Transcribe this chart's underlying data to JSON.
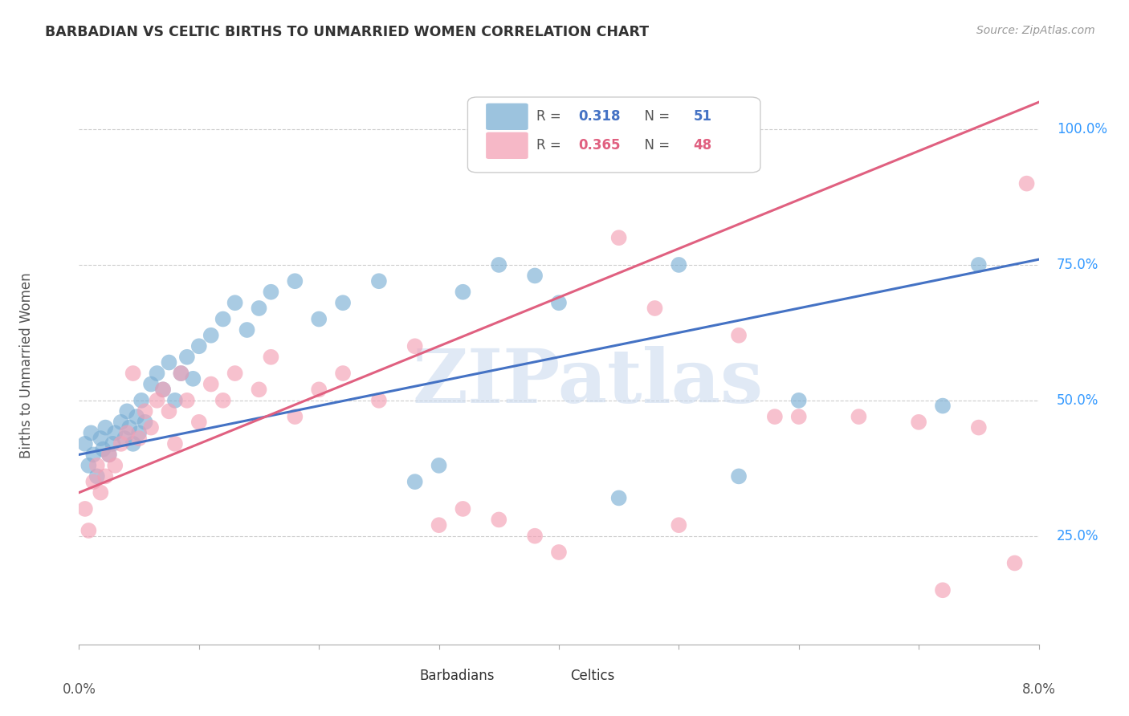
{
  "title": "BARBADIAN VS CELTIC BIRTHS TO UNMARRIED WOMEN CORRELATION CHART",
  "source": "Source: ZipAtlas.com",
  "ylabel": "Births to Unmarried Women",
  "blue_color": "#7BAFD4",
  "pink_color": "#F4A0B5",
  "blue_line_color": "#4472C4",
  "pink_line_color": "#E06080",
  "background_color": "#FFFFFF",
  "watermark_text": "ZIPatlas",
  "blue_R": "0.318",
  "blue_N": "51",
  "pink_R": "0.365",
  "pink_N": "48",
  "ytick_vals": [
    25,
    50,
    75,
    100
  ],
  "ytick_labels": [
    "25.0%",
    "50.0%",
    "75.0%",
    "100.0%"
  ],
  "xmin": 0.0,
  "xmax": 8.0,
  "ymin": 5.0,
  "ymax": 108.0,
  "blue_scatter_x": [
    0.05,
    0.08,
    0.1,
    0.12,
    0.15,
    0.18,
    0.2,
    0.22,
    0.25,
    0.28,
    0.3,
    0.35,
    0.38,
    0.4,
    0.42,
    0.45,
    0.48,
    0.5,
    0.52,
    0.55,
    0.6,
    0.65,
    0.7,
    0.75,
    0.8,
    0.85,
    0.9,
    0.95,
    1.0,
    1.1,
    1.2,
    1.3,
    1.4,
    1.5,
    1.6,
    1.8,
    2.0,
    2.2,
    2.5,
    2.8,
    3.0,
    3.2,
    3.5,
    3.8,
    4.0,
    4.5,
    5.0,
    5.5,
    6.0,
    7.2,
    7.5
  ],
  "blue_scatter_y": [
    42,
    38,
    44,
    40,
    36,
    43,
    41,
    45,
    40,
    42,
    44,
    46,
    43,
    48,
    45,
    42,
    47,
    44,
    50,
    46,
    53,
    55,
    52,
    57,
    50,
    55,
    58,
    54,
    60,
    62,
    65,
    68,
    63,
    67,
    70,
    72,
    65,
    68,
    72,
    35,
    38,
    70,
    75,
    73,
    68,
    32,
    75,
    36,
    50,
    49,
    75
  ],
  "pink_scatter_x": [
    0.05,
    0.08,
    0.12,
    0.15,
    0.18,
    0.22,
    0.25,
    0.3,
    0.35,
    0.4,
    0.45,
    0.5,
    0.55,
    0.6,
    0.65,
    0.7,
    0.75,
    0.8,
    0.85,
    0.9,
    1.0,
    1.1,
    1.2,
    1.3,
    1.5,
    1.6,
    1.8,
    2.0,
    2.2,
    2.5,
    2.8,
    3.0,
    3.2,
    3.5,
    3.8,
    4.0,
    4.5,
    4.8,
    5.0,
    5.5,
    5.8,
    6.0,
    6.5,
    7.0,
    7.2,
    7.5,
    7.8,
    7.9
  ],
  "pink_scatter_y": [
    30,
    26,
    35,
    38,
    33,
    36,
    40,
    38,
    42,
    44,
    55,
    43,
    48,
    45,
    50,
    52,
    48,
    42,
    55,
    50,
    46,
    53,
    50,
    55,
    52,
    58,
    47,
    52,
    55,
    50,
    60,
    27,
    30,
    28,
    25,
    22,
    80,
    67,
    27,
    62,
    47,
    47,
    47,
    46,
    15,
    45,
    20,
    90
  ],
  "blue_intercept": 40.0,
  "blue_slope": 4.5,
  "pink_intercept": 33.0,
  "pink_slope": 9.0
}
